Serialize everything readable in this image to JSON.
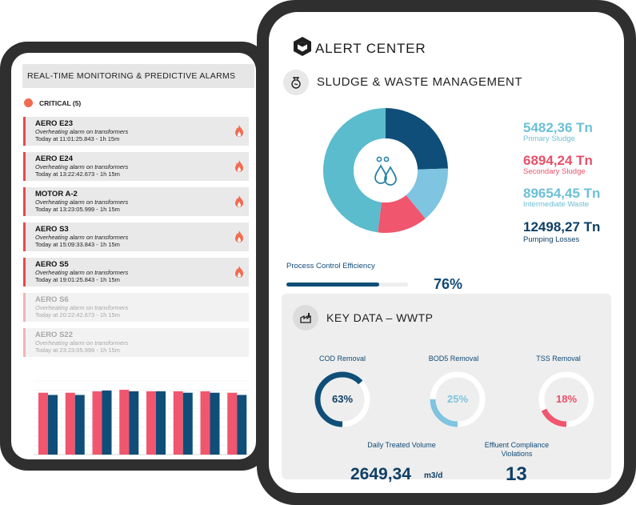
{
  "monitoring": {
    "title": "REAL-TIME MONITORING & PREDICTIVE ALARMS",
    "critical_label": "CRITICAL (5)",
    "alarms": [
      {
        "name": "AERO E23",
        "desc": "Overheating alarm on transformers",
        "time": "Today at 11:01:25.843 - 1h 15m"
      },
      {
        "name": "AERO E24",
        "desc": "Overheating alarm on transformers",
        "time": "Today at 13:22:42.673 - 1h 15m"
      },
      {
        "name": "MOTOR A-2",
        "desc": "Overheating alarm on transformers",
        "time": "Today at 13:23:05.999 - 1h 15m"
      },
      {
        "name": "AERO S3",
        "desc": "Overheating alarm on transformers",
        "time": "Today at 15:09:33.843 - 1h 15m"
      },
      {
        "name": "AERO S5",
        "desc": "Overheating alarm on transformers",
        "time": "Today at 19:01:25.843 - 1h 15m"
      },
      {
        "name": "AERO S6",
        "desc": "Overheating alarm on transformers",
        "time": "Today at 20:22:42.673 - 1h 15m"
      },
      {
        "name": "AERO S22",
        "desc": "Overheating alarm on transformers",
        "time": "Today at 23:23:05.999 - 1h 15m"
      }
    ],
    "icons": {
      "alarm": "fire-icon"
    }
  },
  "chart_data": {
    "type": "bar",
    "series": [
      {
        "values": [
          84,
          84,
          86,
          88,
          86,
          86,
          86,
          84
        ],
        "color": "#f0566e"
      },
      {
        "values": [
          81,
          81,
          87,
          86,
          86,
          84,
          84,
          81
        ],
        "color": "#0f4e78"
      }
    ],
    "ylim": [
      0,
      100
    ]
  },
  "alert_center": {
    "title": "ALERT CENTER",
    "logo_icon": "hexagon-logo-icon"
  },
  "sludge": {
    "title": "SLUDGE & WASTE MANAGEMENT",
    "icon": "waste-icon",
    "center_icon": "water-drops-icon",
    "donut": [
      {
        "value": 5482.36,
        "color": "#0f4e78"
      },
      {
        "value": 6894.24,
        "color": "#7fc4e0"
      },
      {
        "value": 12498.27,
        "color": "#f0566e"
      },
      {
        "value": 89654.45,
        "color": "#5bbccd"
      }
    ],
    "stats": [
      {
        "value": "5482,36 Tn",
        "label": "Primary Sludge",
        "color": "#6cc0d6"
      },
      {
        "value": "6894,24 Tn",
        "label": "Secondary Sludge",
        "color": "#e8506a"
      },
      {
        "value": "89654,45 Tn",
        "label": "Intermediate Waste",
        "color": "#6cc0d6"
      },
      {
        "value": "12498,27 Tn",
        "label": "Pumping Losses",
        "color": "#0f3f66"
      }
    ],
    "efficiency_label": "Process Control Efficiency",
    "efficiency_value": "76%",
    "efficiency_fraction": 0.76
  },
  "key_data": {
    "title": "KEY DATA – WWTP",
    "icon": "factory-icon",
    "gauges": [
      {
        "label": "COD Removal",
        "value": "63%",
        "fraction": 0.63,
        "color": "#0f4e78",
        "text_color": "#0f3f66"
      },
      {
        "label": "BOD5 Removal",
        "value": "25%",
        "fraction": 0.25,
        "color": "#7fc4e0",
        "text_color": "#7fc4e0"
      },
      {
        "label": "TSS Removal",
        "value": "18%",
        "fraction": 0.18,
        "color": "#f0566e",
        "text_color": "#e8506a"
      }
    ],
    "volume_label": "Daily Treated Volume",
    "volume_value": "2649,34",
    "volume_unit": "m3/d",
    "violations_label_1": "Effluent Compliance",
    "violations_label_2": "Violations",
    "violations_value": "13"
  }
}
